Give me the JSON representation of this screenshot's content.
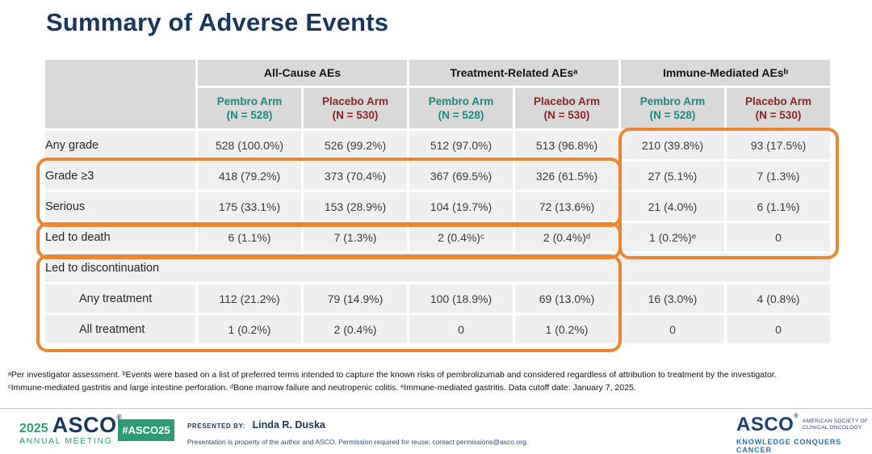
{
  "slide": {
    "title": "Summary of Adverse Events"
  },
  "table": {
    "groups": [
      {
        "label": "All-Cause AEs"
      },
      {
        "label": "Treatment-Related AEsᵃ"
      },
      {
        "label": "Immune-Mediated AEsᵇ"
      }
    ],
    "columns": [
      {
        "name": "Pembro Arm",
        "n": "(N = 528)",
        "arm": "pembro"
      },
      {
        "name": "Placebo Arm",
        "n": "(N = 530)",
        "arm": "placebo"
      },
      {
        "name": "Pembro Arm",
        "n": "(N = 528)",
        "arm": "pembro"
      },
      {
        "name": "Placebo Arm",
        "n": "(N = 530)",
        "arm": "placebo"
      },
      {
        "name": "Pembro Arm",
        "n": "(N = 528)",
        "arm": "pembro"
      },
      {
        "name": "Placebo Arm",
        "n": "(N = 530)",
        "arm": "placebo"
      }
    ],
    "rows": [
      {
        "label": "Any grade",
        "values": [
          "528 (100.0%)",
          "526 (99.2%)",
          "512 (97.0%)",
          "513 (96.8%)",
          "210 (39.8%)",
          "93 (17.5%)"
        ]
      },
      {
        "label": "Grade ≥3",
        "values": [
          "418 (79.2%)",
          "373 (70.4%)",
          "367 (69.5%)",
          "326 (61.5%)",
          "27 (5.1%)",
          "7 (1.3%)"
        ]
      },
      {
        "label": "Serious",
        "values": [
          "175 (33.1%)",
          "153 (28.9%)",
          "104 (19.7%)",
          "72 (13.6%)",
          "21 (4.0%)",
          "6 (1.1%)"
        ]
      },
      {
        "label": "Led to death",
        "values": [
          "6 (1.1%)",
          "7 (1.3%)",
          "2 (0.4%)ᶜ",
          "2 (0.4%)ᵈ",
          "1 (0.2%)ᵉ",
          "0"
        ]
      },
      {
        "label": "Led to discontinuation",
        "span": true
      },
      {
        "label": "Any treatment",
        "indent": true,
        "values": [
          "112 (21.2%)",
          "79 (14.9%)",
          "100 (18.9%)",
          "69 (13.0%)",
          "16 (3.0%)",
          "4 (0.8%)"
        ]
      },
      {
        "label": "All treatment",
        "indent": true,
        "values": [
          "1 (0.2%)",
          "2 (0.4%)",
          "0",
          "1 (0.2%)",
          "0",
          "0"
        ]
      }
    ]
  },
  "footnotes": {
    "line1": "ᵃPer investigator assessment. ᵇEvents were based on a list of preferred terms intended to capture the known risks of pembrolizumab and considered regardless of attribution to treatment by the investigator.",
    "line2": "ᶜImmune-mediated gastritis and large intestine perforation. ᵈBone marrow failure and neutropenic colitis. ᵉImmune-mediated gastritis.  Data cutoff date: January 7, 2025."
  },
  "footer": {
    "meeting_logo": {
      "year": "2025",
      "org": "ASCO",
      "reg_mark": "®",
      "meeting": "ANNUAL MEETING"
    },
    "hashtag": "#ASCO25",
    "presented_by_label": "PRESENTED BY:",
    "presenter": "Linda R. Duska",
    "disclaimer": "Presentation is property of the author and ASCO. Permission required for reuse; contact permissions@asco.org.",
    "asco_logo": {
      "org": "ASCO",
      "reg_mark": "®",
      "society_line1": "AMERICAN SOCIETY OF",
      "society_line2": "CLINICAL ONCOLOGY",
      "tagline": "KNOWLEDGE CONQUERS CANCER"
    }
  },
  "colors": {
    "title": "#17375D",
    "header_bg": "#d9d9d9",
    "row_bg": "#f0f0f0",
    "pembro_arm": "#1A8A7D",
    "placebo_arm": "#8B2525",
    "highlight": "#EA8633",
    "asco_green": "#2B9B78",
    "asco_blue": "#1B3F77"
  }
}
